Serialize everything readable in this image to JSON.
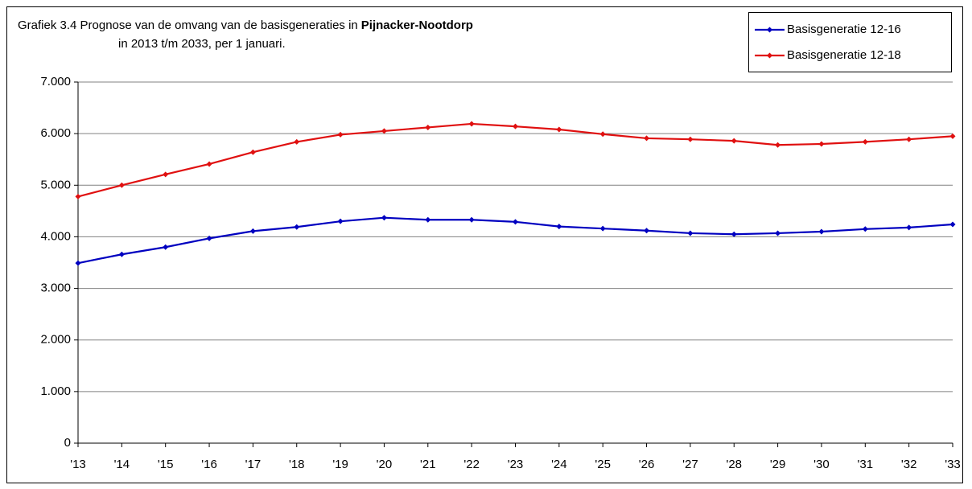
{
  "chart_data": {
    "type": "line",
    "title": {
      "prefix": "Grafiek 3.4 Prognose van de omvang van de basisgeneraties in",
      "emphasis": "Pijnacker-Nootdorp",
      "line2": "in 2013 t/m 2033, per 1 januari."
    },
    "categories": [
      "'13",
      "'14",
      "'15",
      "'16",
      "'17",
      "'18",
      "'19",
      "'20",
      "'21",
      "'22",
      "'23",
      "'24",
      "'25",
      "'26",
      "'27",
      "'28",
      "'29",
      "'30",
      "'31",
      "'32",
      "'33"
    ],
    "series": [
      {
        "name": "Basisgeneratie 12-16",
        "color": "#0000c0",
        "values": [
          3490,
          3660,
          3800,
          3970,
          4110,
          4190,
          4300,
          4370,
          4330,
          4330,
          4290,
          4200,
          4160,
          4120,
          4070,
          4050,
          4070,
          4100,
          4150,
          4180,
          4240
        ]
      },
      {
        "name": "Basisgeneratie 12-18",
        "color": "#e01010",
        "values": [
          4780,
          5000,
          5210,
          5410,
          5640,
          5840,
          5980,
          6050,
          6120,
          6190,
          6140,
          6080,
          5990,
          5910,
          5890,
          5860,
          5780,
          5800,
          5840,
          5890,
          5950
        ]
      }
    ],
    "ylim": [
      0,
      7000
    ],
    "yticks": [
      0,
      {
        "value": 1000,
        "label": "1.000"
      },
      {
        "value": 2000,
        "label": "2.000"
      },
      {
        "value": 3000,
        "label": "3.000"
      },
      {
        "value": 4000,
        "label": "4.000"
      },
      {
        "value": 5000,
        "label": "5.000"
      },
      {
        "value": 6000,
        "label": "6.000"
      },
      {
        "value": 7000,
        "label": "7.000"
      }
    ],
    "grid": true,
    "legend": "top-right"
  }
}
